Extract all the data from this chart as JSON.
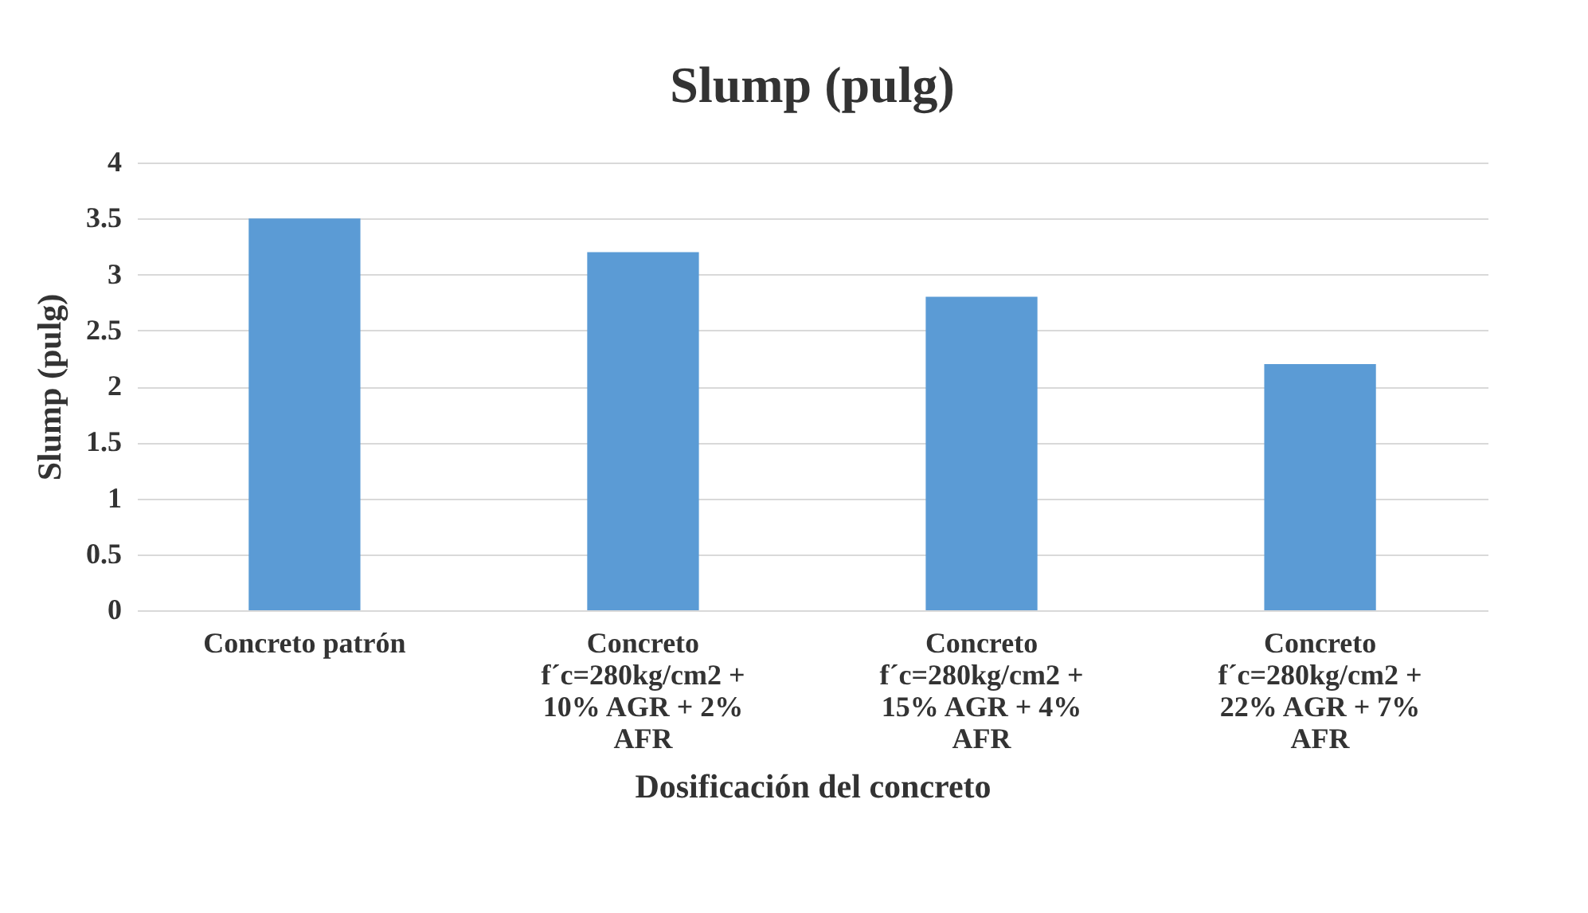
{
  "chart_data": {
    "type": "bar",
    "title": "Slump (pulg)",
    "xlabel": "Dosificación del concreto",
    "ylabel": "Slump (pulg)",
    "categories": [
      "Concreto patrón",
      "Concreto f´c=280kg/cm2 + 10% AGR + 2% AFR",
      "Concreto f´c=280kg/cm2 + 15% AGR + 4% AFR",
      "Concreto f´c=280kg/cm2 + 22% AGR + 7% AFR"
    ],
    "values": [
      3.5,
      3.2,
      2.8,
      2.2
    ],
    "color": "#5b9bd5",
    "ylim": [
      0,
      4
    ],
    "yticks": [
      0,
      0.5,
      1,
      1.5,
      2,
      2.5,
      3,
      3.5,
      4
    ],
    "grid": "y"
  }
}
